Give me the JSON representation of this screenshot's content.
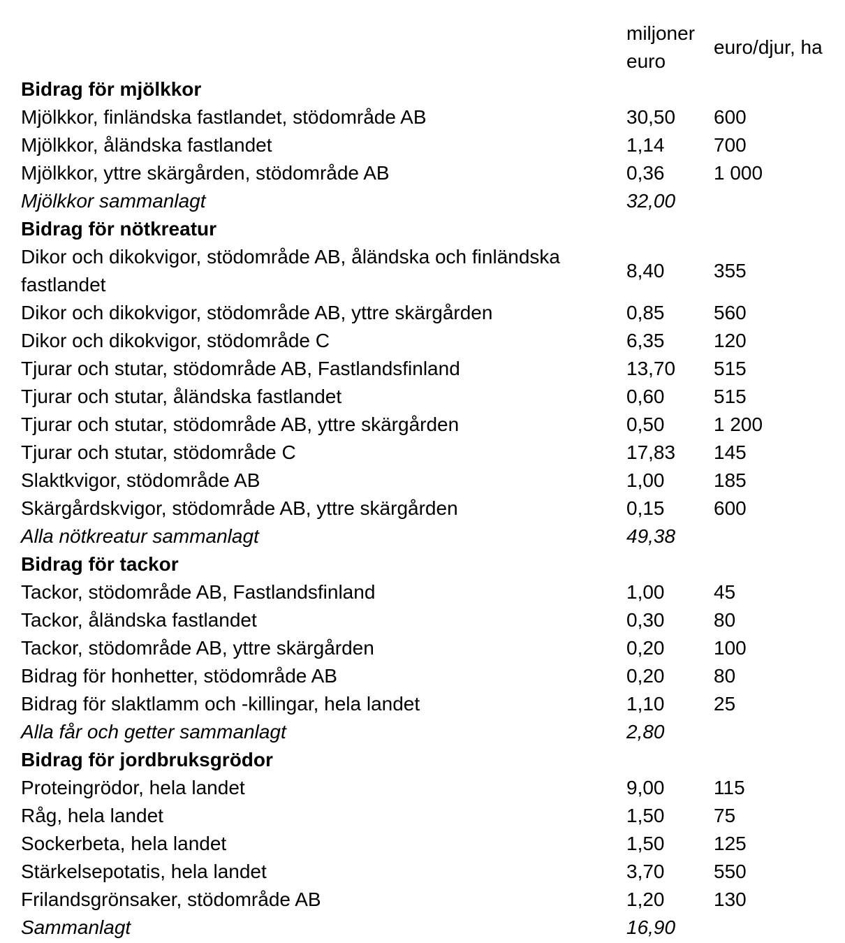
{
  "page": {
    "background_color": "#ffffff",
    "text_color": "#000000"
  },
  "table": {
    "columns": [
      {
        "key": "miljoner_euro",
        "label": "miljoner euro"
      },
      {
        "key": "euro_per_djur",
        "label": "euro/djur, ha"
      }
    ],
    "rows": [
      {
        "type": "section",
        "label": "Bidrag för mjölkkor",
        "miljoner_euro": "",
        "euro_per_djur": ""
      },
      {
        "type": "data",
        "label": "Mjölkkor, finländska fastlandet, stödområde AB",
        "miljoner_euro": "30,50",
        "euro_per_djur": "600"
      },
      {
        "type": "data",
        "label": "Mjölkkor, åländska fastlandet",
        "miljoner_euro": "1,14",
        "euro_per_djur": "700"
      },
      {
        "type": "data",
        "label": "Mjölkkor, yttre skärgården, stödområde AB",
        "miljoner_euro": "0,36",
        "euro_per_djur": "1 000"
      },
      {
        "type": "total",
        "label": "Mjölkkor sammanlagt",
        "miljoner_euro": "32,00",
        "euro_per_djur": ""
      },
      {
        "type": "section",
        "label": "Bidrag för nötkreatur",
        "miljoner_euro": "",
        "euro_per_djur": ""
      },
      {
        "type": "data",
        "label": "Dikor och dikokvigor, stödområde AB, åländska och finländska fastlandet",
        "miljoner_euro": "8,40",
        "euro_per_djur": "355"
      },
      {
        "type": "data",
        "label": "Dikor och dikokvigor, stödområde AB, yttre skärgården",
        "miljoner_euro": "0,85",
        "euro_per_djur": "560"
      },
      {
        "type": "data",
        "label": "Dikor och dikokvigor, stödområde C",
        "miljoner_euro": "6,35",
        "euro_per_djur": "120"
      },
      {
        "type": "data",
        "label": "Tjurar och stutar, stödområde AB, Fastlandsfinland",
        "miljoner_euro": "13,70",
        "euro_per_djur": "515"
      },
      {
        "type": "data",
        "label": "Tjurar och stutar, åländska fastlandet",
        "miljoner_euro": "0,60",
        "euro_per_djur": "515"
      },
      {
        "type": "data",
        "label": "Tjurar och stutar, stödområde AB, yttre skärgården",
        "miljoner_euro": "0,50",
        "euro_per_djur": "1 200"
      },
      {
        "type": "data",
        "label": "Tjurar och stutar, stödområde C",
        "miljoner_euro": "17,83",
        "euro_per_djur": "145"
      },
      {
        "type": "data",
        "label": "Slaktkvigor, stödområde AB",
        "miljoner_euro": "1,00",
        "euro_per_djur": "185"
      },
      {
        "type": "data",
        "label": "Skärgårdskvigor, stödområde AB, yttre skärgården",
        "miljoner_euro": "0,15",
        "euro_per_djur": "600"
      },
      {
        "type": "total",
        "label": "Alla nötkreatur sammanlagt",
        "miljoner_euro": "49,38",
        "euro_per_djur": ""
      },
      {
        "type": "section",
        "label": "Bidrag för tackor",
        "miljoner_euro": "",
        "euro_per_djur": ""
      },
      {
        "type": "data",
        "label": "Tackor, stödområde AB, Fastlandsfinland",
        "miljoner_euro": "1,00",
        "euro_per_djur": "45"
      },
      {
        "type": "data",
        "label": "Tackor, åländska fastlandet",
        "miljoner_euro": "0,30",
        "euro_per_djur": "80"
      },
      {
        "type": "data",
        "label": "Tackor, stödområde AB, yttre skärgården",
        "miljoner_euro": "0,20",
        "euro_per_djur": "100"
      },
      {
        "type": "data",
        "label": "Bidrag för honhetter, stödområde AB",
        "miljoner_euro": "0,20",
        "euro_per_djur": "80"
      },
      {
        "type": "data",
        "label": "Bidrag för slaktlamm och -killingar, hela landet",
        "miljoner_euro": "1,10",
        "euro_per_djur": "25"
      },
      {
        "type": "total",
        "label": "Alla får och getter sammanlagt",
        "miljoner_euro": "2,80",
        "euro_per_djur": ""
      },
      {
        "type": "section",
        "label": "Bidrag för jordbruksgrödor",
        "miljoner_euro": "",
        "euro_per_djur": ""
      },
      {
        "type": "data",
        "label": "Proteingrödor, hela landet",
        "miljoner_euro": "9,00",
        "euro_per_djur": "115"
      },
      {
        "type": "data",
        "label": "Råg, hela landet",
        "miljoner_euro": "1,50",
        "euro_per_djur": "75"
      },
      {
        "type": "data",
        "label": "Sockerbeta, hela landet",
        "miljoner_euro": "1,50",
        "euro_per_djur": "125"
      },
      {
        "type": "data",
        "label": "Stärkelsepotatis, hela landet",
        "miljoner_euro": "3,70",
        "euro_per_djur": "550"
      },
      {
        "type": "data",
        "label": "Frilandsgrönsaker, stödområde AB",
        "miljoner_euro": "1,20",
        "euro_per_djur": "130"
      },
      {
        "type": "total",
        "label": "Sammanlagt",
        "miljoner_euro": "16,90",
        "euro_per_djur": ""
      }
    ]
  }
}
